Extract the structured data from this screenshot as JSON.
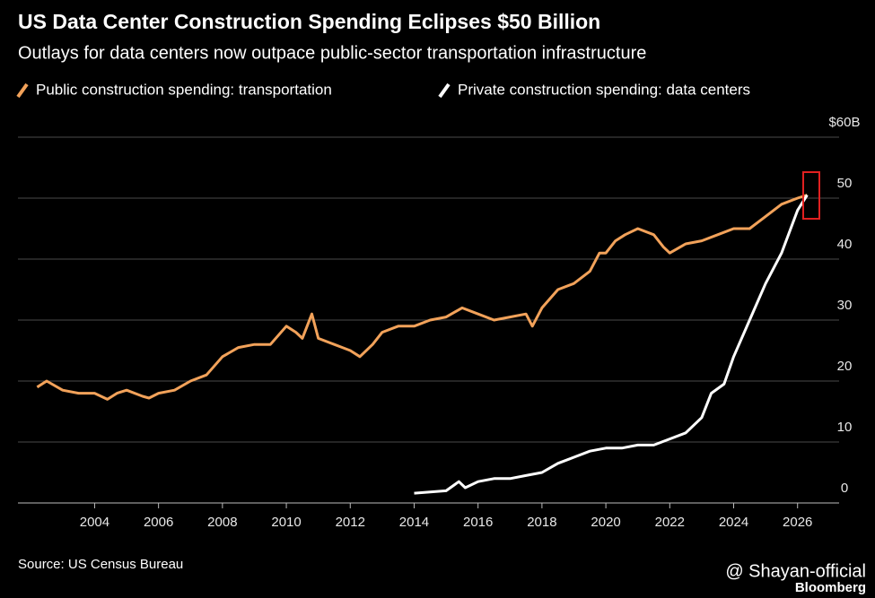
{
  "chart_data": {
    "type": "line",
    "title": "US Data Center Construction Spending Eclipses $50 Billion",
    "subtitle": "Outlays for data centers now outpace public-sector transportation infrastructure",
    "source": "Source: US Census Bureau",
    "watermark": "@ Shayan-official",
    "brand": "Bloomberg",
    "xlim": [
      2001.6,
      2027.3
    ],
    "xticks": [
      2004,
      2006,
      2008,
      2010,
      2012,
      2014,
      2016,
      2018,
      2020,
      2022,
      2024,
      2026
    ],
    "ylim": [
      0,
      60
    ],
    "yticks": [
      0,
      10,
      20,
      30,
      40,
      50,
      {
        "value": 60,
        "label": "$60B"
      }
    ],
    "grid": true,
    "series": [
      {
        "name": "Public construction spending: transportation",
        "color": "#f2a25a",
        "x": [
          2002.2,
          2002.5,
          2003,
          2003.5,
          2004,
          2004.4,
          2004.7,
          2005,
          2005.5,
          2005.7,
          2006,
          2006.5,
          2007,
          2007.5,
          2008,
          2008.5,
          2009,
          2009.5,
          2010,
          2010.3,
          2010.5,
          2010.8,
          2011,
          2011.5,
          2012,
          2012.3,
          2012.7,
          2013,
          2013.5,
          2014,
          2014.5,
          2015,
          2015.5,
          2016,
          2016.5,
          2017,
          2017.5,
          2017.7,
          2018,
          2018.5,
          2019,
          2019.5,
          2019.8,
          2020,
          2020.3,
          2020.6,
          2021,
          2021.5,
          2021.8,
          2022,
          2022.5,
          2023,
          2023.5,
          2024,
          2024.5,
          2025,
          2025.5,
          2026,
          2026.3
        ],
        "values": [
          19,
          20,
          18.5,
          18,
          18,
          17,
          18,
          18.5,
          17.5,
          17.2,
          18,
          18.5,
          20,
          21,
          24,
          25.5,
          26,
          26,
          29,
          28,
          27,
          31,
          27,
          26,
          25,
          24,
          26,
          28,
          29,
          29,
          30,
          30.5,
          32,
          31,
          30,
          30.5,
          31,
          29,
          32,
          35,
          36,
          38,
          41,
          41,
          43,
          44,
          45,
          44,
          42,
          41,
          42.5,
          43,
          44,
          45,
          45,
          47,
          49,
          50,
          50.5
        ]
      },
      {
        "name": "Private construction spending: data centers",
        "color": "#ffffff",
        "x": [
          2014,
          2014.5,
          2015,
          2015.4,
          2015.6,
          2016,
          2016.5,
          2017,
          2017.5,
          2018,
          2018.5,
          2019,
          2019.5,
          2020,
          2020.5,
          2021,
          2021.5,
          2022,
          2022.5,
          2023,
          2023.3,
          2023.7,
          2024,
          2024.5,
          2025,
          2025.5,
          2026,
          2026.3
        ],
        "values": [
          1.6,
          1.8,
          2,
          3.5,
          2.5,
          3.5,
          4,
          4,
          4.5,
          5,
          6.5,
          7.5,
          8.5,
          9,
          9,
          9.5,
          9.5,
          10.5,
          11.5,
          14,
          18,
          19.5,
          24,
          30,
          36,
          41,
          48,
          50.5
        ]
      }
    ]
  }
}
